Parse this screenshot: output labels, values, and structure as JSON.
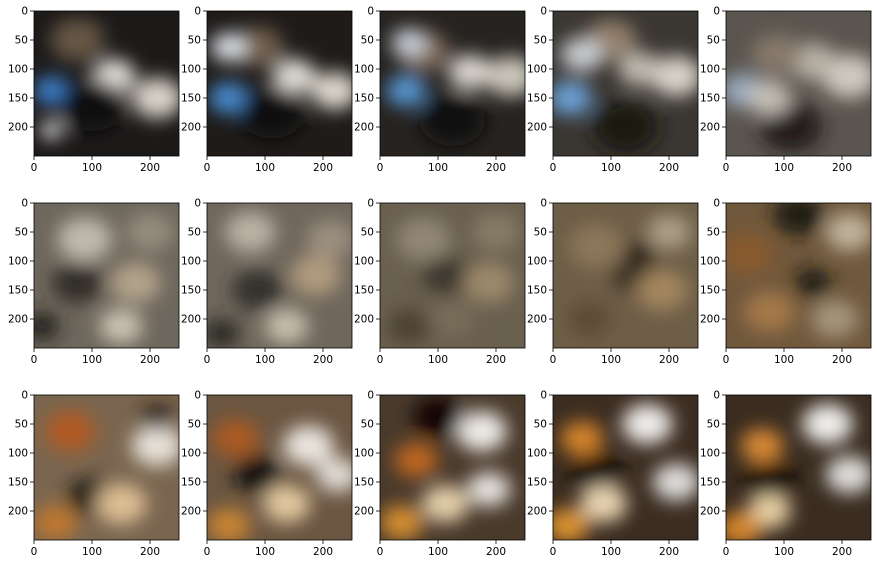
{
  "figure": {
    "rows": 3,
    "cols": 5,
    "x_ticks": [
      "0",
      "100",
      "200"
    ],
    "y_ticks": [
      "0",
      "50",
      "100",
      "150",
      "200"
    ],
    "x_tick_values": [
      0,
      100,
      200
    ],
    "y_tick_values": [
      0,
      50,
      100,
      150,
      200
    ],
    "image_extent": [
      0,
      250
    ],
    "axis_color": "#000000",
    "background": "#ffffff"
  },
  "panels": [
    {
      "name": "row1-col1",
      "palette": "blue-dark",
      "base": "#1c1a19",
      "blobs": [
        [
          "#f2efe9",
          0.55,
          0.45,
          0.12
        ],
        [
          "#3f86d8",
          0.12,
          0.55,
          0.1
        ],
        [
          "#e8e2d6",
          0.85,
          0.6,
          0.14
        ],
        [
          "#0b0b0b",
          0.4,
          0.65,
          0.18
        ],
        [
          "#6b5b47",
          0.3,
          0.2,
          0.15
        ],
        [
          "#ffffff",
          0.12,
          0.82,
          0.06
        ]
      ]
    },
    {
      "name": "row1-col2",
      "palette": "blue-dark",
      "base": "#1e1b19",
      "blobs": [
        [
          "#f1ede6",
          0.6,
          0.45,
          0.12
        ],
        [
          "#4a92dc",
          0.15,
          0.6,
          0.11
        ],
        [
          "#ece6da",
          0.88,
          0.55,
          0.13
        ],
        [
          "#0c0c0c",
          0.45,
          0.7,
          0.18
        ],
        [
          "#7a6650",
          0.35,
          0.25,
          0.14
        ],
        [
          "#e8eef5",
          0.15,
          0.25,
          0.1
        ]
      ]
    },
    {
      "name": "row1-col3",
      "palette": "blue-dark",
      "base": "#262320",
      "blobs": [
        [
          "#e9e4dc",
          0.62,
          0.42,
          0.12
        ],
        [
          "#5a9ee0",
          0.18,
          0.55,
          0.11
        ],
        [
          "#d8d2c7",
          0.9,
          0.45,
          0.14
        ],
        [
          "#101010",
          0.5,
          0.75,
          0.18
        ],
        [
          "#877260",
          0.3,
          0.28,
          0.14
        ],
        [
          "#cfd7e1",
          0.2,
          0.22,
          0.1
        ]
      ]
    },
    {
      "name": "row1-col4",
      "palette": "blue-grey",
      "base": "#3a3631",
      "blobs": [
        [
          "#e6e0d7",
          0.85,
          0.45,
          0.14
        ],
        [
          "#6ea8e2",
          0.12,
          0.6,
          0.12
        ],
        [
          "#c9c3b8",
          0.6,
          0.4,
          0.12
        ],
        [
          "#141312",
          0.5,
          0.8,
          0.18
        ],
        [
          "#9a8672",
          0.4,
          0.2,
          0.14
        ],
        [
          "#d1d5da",
          0.2,
          0.3,
          0.12
        ]
      ]
    },
    {
      "name": "row1-col5",
      "palette": "grey",
      "base": "#5a554e",
      "blobs": [
        [
          "#d9d3c9",
          0.85,
          0.45,
          0.15
        ],
        [
          "#9db1c8",
          0.12,
          0.55,
          0.12
        ],
        [
          "#bfb8ad",
          0.6,
          0.35,
          0.13
        ],
        [
          "#1c1a18",
          0.45,
          0.8,
          0.17
        ],
        [
          "#8a7c6c",
          0.35,
          0.3,
          0.14
        ],
        [
          "#ccc6bc",
          0.3,
          0.6,
          0.12
        ]
      ]
    },
    {
      "name": "row2-col1",
      "palette": "grey-brown",
      "base": "#6e675d",
      "blobs": [
        [
          "#c8c1b4",
          0.35,
          0.25,
          0.15
        ],
        [
          "#2a2825",
          0.3,
          0.55,
          0.14
        ],
        [
          "#b8a88e",
          0.7,
          0.55,
          0.14
        ],
        [
          "#1c1b1a",
          0.05,
          0.85,
          0.1
        ],
        [
          "#9a8f80",
          0.8,
          0.2,
          0.13
        ],
        [
          "#d3cab9",
          0.6,
          0.85,
          0.12
        ]
      ]
    },
    {
      "name": "row2-col2",
      "palette": "grey-brown",
      "base": "#6f675c",
      "blobs": [
        [
          "#c0b8aa",
          0.3,
          0.2,
          0.14
        ],
        [
          "#2d2a26",
          0.35,
          0.6,
          0.14
        ],
        [
          "#b59f80",
          0.75,
          0.5,
          0.14
        ],
        [
          "#25221f",
          0.1,
          0.9,
          0.1
        ],
        [
          "#a09382",
          0.85,
          0.25,
          0.13
        ],
        [
          "#cfc5b3",
          0.55,
          0.85,
          0.12
        ]
      ]
    },
    {
      "name": "row2-col3",
      "palette": "brown",
      "base": "#6a604f",
      "blobs": [
        [
          "#948a76",
          0.3,
          0.25,
          0.15
        ],
        [
          "#3a342c",
          0.45,
          0.5,
          0.13
        ],
        [
          "#a08c6e",
          0.75,
          0.55,
          0.14
        ],
        [
          "#4a3f32",
          0.2,
          0.85,
          0.12
        ],
        [
          "#8a7e68",
          0.8,
          0.2,
          0.13
        ],
        [
          "#7b6e5a",
          0.5,
          0.8,
          0.12
        ]
      ]
    },
    {
      "name": "row2-col4",
      "palette": "brown",
      "base": "#6e5e47",
      "blobs": [
        [
          "#8f7a5c",
          0.3,
          0.3,
          0.15
        ],
        [
          "#3b3025",
          0.55,
          0.5,
          0.12
        ],
        [
          "#a88a62",
          0.75,
          0.6,
          0.14
        ],
        [
          "#5a4935",
          0.25,
          0.8,
          0.12
        ],
        [
          "#b3a58c",
          0.8,
          0.2,
          0.12
        ],
        [
          "#2a2219",
          0.6,
          0.35,
          0.09
        ]
      ]
    },
    {
      "name": "row2-col5",
      "palette": "brown-orange",
      "base": "#70583c",
      "blobs": [
        [
          "#1a1410",
          0.5,
          0.08,
          0.14
        ],
        [
          "#8b5a2b",
          0.15,
          0.35,
          0.14
        ],
        [
          "#1a1612",
          0.6,
          0.55,
          0.1
        ],
        [
          "#c7bba5",
          0.85,
          0.2,
          0.13
        ],
        [
          "#a87c4a",
          0.3,
          0.75,
          0.14
        ],
        [
          "#a99a82",
          0.75,
          0.8,
          0.13
        ]
      ]
    },
    {
      "name": "row3-col1",
      "palette": "orange-white",
      "base": "#7a6650",
      "blobs": [
        [
          "#f0ece4",
          0.85,
          0.35,
          0.14
        ],
        [
          "#b5581c",
          0.25,
          0.25,
          0.14
        ],
        [
          "#1a140f",
          0.4,
          0.7,
          0.13
        ],
        [
          "#e6c79a",
          0.6,
          0.75,
          0.14
        ],
        [
          "#c47a2a",
          0.15,
          0.88,
          0.12
        ],
        [
          "#2a201a",
          0.85,
          0.15,
          0.09
        ]
      ]
    },
    {
      "name": "row3-col2",
      "palette": "orange-white",
      "base": "#6b5642",
      "blobs": [
        [
          "#f4f1eb",
          0.7,
          0.35,
          0.14
        ],
        [
          "#b05a1c",
          0.2,
          0.3,
          0.13
        ],
        [
          "#0f0c0a",
          0.35,
          0.55,
          0.13
        ],
        [
          "#ecd2a8",
          0.55,
          0.75,
          0.13
        ],
        [
          "#cf8830",
          0.15,
          0.9,
          0.12
        ],
        [
          "#e8e5df",
          0.9,
          0.55,
          0.12
        ]
      ]
    },
    {
      "name": "row3-col3",
      "palette": "orange-white",
      "base": "#4a3a2c",
      "blobs": [
        [
          "#fbfaf7",
          0.7,
          0.25,
          0.14
        ],
        [
          "#c86a1c",
          0.25,
          0.45,
          0.12
        ],
        [
          "#080706",
          0.4,
          0.15,
          0.14
        ],
        [
          "#f1dbb5",
          0.45,
          0.75,
          0.13
        ],
        [
          "#e0952f",
          0.15,
          0.88,
          0.12
        ],
        [
          "#f2f0ec",
          0.75,
          0.65,
          0.12
        ]
      ]
    },
    {
      "name": "row3-col4",
      "palette": "orange-white",
      "base": "#3c2d21",
      "blobs": [
        [
          "#fdfcfa",
          0.65,
          0.2,
          0.14
        ],
        [
          "#e08a2a",
          0.2,
          0.3,
          0.12
        ],
        [
          "#050404",
          0.3,
          0.55,
          0.14
        ],
        [
          "#f5e1bd",
          0.35,
          0.75,
          0.13
        ],
        [
          "#e89a30",
          0.1,
          0.9,
          0.12
        ],
        [
          "#ececea",
          0.85,
          0.6,
          0.13
        ]
      ]
    },
    {
      "name": "row3-col5",
      "palette": "orange-white",
      "base": "#3a2c20",
      "blobs": [
        [
          "#fefefc",
          0.7,
          0.2,
          0.14
        ],
        [
          "#e39036",
          0.25,
          0.35,
          0.12
        ],
        [
          "#030303",
          0.3,
          0.6,
          0.14
        ],
        [
          "#f4dcae",
          0.3,
          0.8,
          0.12
        ],
        [
          "#df8d2a",
          0.1,
          0.92,
          0.12
        ],
        [
          "#ededeb",
          0.85,
          0.55,
          0.13
        ]
      ]
    }
  ]
}
